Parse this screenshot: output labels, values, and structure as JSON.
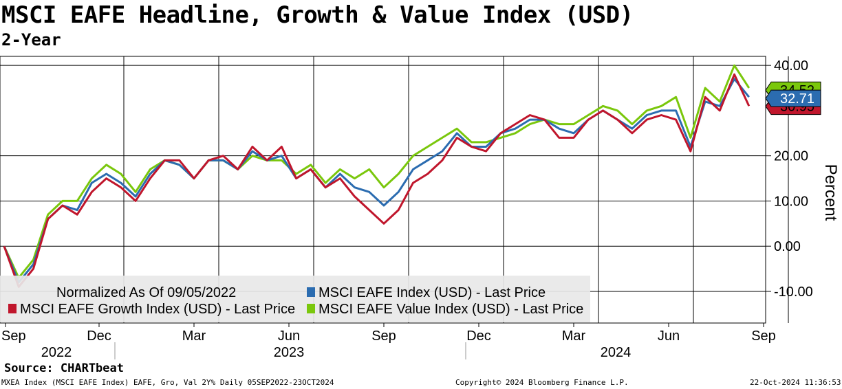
{
  "colors": {
    "index": "#2b6cb0",
    "growth": "#c0162c",
    "value": "#7ac70c"
  },
  "chart_data": {
    "type": "line",
    "title": "MSCI EAFE Headline, Growth & Value Index (USD)",
    "subtitle": "2-Year",
    "ylabel": "Percent",
    "ylim": [
      -17,
      42
    ],
    "y_ticks": [
      "40.00",
      "20.00",
      "10.00",
      "0.00",
      "-10.00"
    ],
    "y_tick_values": [
      40,
      20,
      10,
      0,
      -10
    ],
    "x_range": [
      0,
      103
    ],
    "x_month_ticks": [
      "Sep",
      "Dec",
      "Mar",
      "Jun",
      "Sep",
      "Dec",
      "Mar",
      "Jun",
      "Sep"
    ],
    "x_month_positions": [
      0,
      13,
      26,
      39,
      52,
      65,
      78,
      91,
      104
    ],
    "x_years": [
      "2022",
      "2023",
      "2024"
    ],
    "legend_note": "Normalized As Of 09/05/2022",
    "series": [
      {
        "name": "MSCI EAFE Index (USD) - Last Price",
        "key": "index",
        "last": "32.71",
        "x": [
          0,
          2,
          4,
          6,
          8,
          10,
          12,
          14,
          16,
          18,
          20,
          22,
          24,
          26,
          28,
          30,
          32,
          34,
          36,
          38,
          40,
          42,
          44,
          46,
          48,
          50,
          52,
          54,
          56,
          58,
          60,
          62,
          64,
          66,
          68,
          70,
          72,
          74,
          76,
          78,
          80,
          82,
          84,
          86,
          88,
          90,
          92,
          94,
          96,
          98,
          100,
          102
        ],
        "values": [
          0,
          -8,
          -4,
          6,
          9,
          8,
          14,
          16,
          14,
          11,
          16,
          19,
          18,
          15,
          19,
          19,
          17,
          21,
          19,
          20,
          15,
          17,
          13,
          16,
          13,
          12,
          9,
          12,
          17,
          19,
          21,
          25,
          22,
          22,
          25,
          26,
          28,
          28,
          26,
          25,
          28,
          30,
          28,
          26,
          29,
          30,
          30,
          22,
          32,
          31,
          37,
          33
        ]
      },
      {
        "name": "MSCI EAFE Growth Index (USD) - Last Price",
        "key": "growth",
        "last": "30.95",
        "x": [
          0,
          2,
          4,
          6,
          8,
          10,
          12,
          14,
          16,
          18,
          20,
          22,
          24,
          26,
          28,
          30,
          32,
          34,
          36,
          38,
          40,
          42,
          44,
          46,
          48,
          50,
          52,
          54,
          56,
          58,
          60,
          62,
          64,
          66,
          68,
          70,
          72,
          74,
          76,
          78,
          80,
          82,
          84,
          86,
          88,
          90,
          92,
          94,
          96,
          98,
          100,
          102
        ],
        "values": [
          0,
          -9,
          -5,
          6,
          9,
          7,
          12,
          15,
          13,
          10,
          15,
          19,
          19,
          15,
          19,
          20,
          17,
          22,
          19,
          22,
          15,
          17,
          13,
          15,
          11,
          8,
          5,
          8,
          14,
          16,
          19,
          24,
          22,
          21,
          25,
          27,
          29,
          28,
          24,
          24,
          28,
          30,
          28,
          25,
          28,
          29,
          28,
          21,
          33,
          30,
          38,
          31
        ]
      },
      {
        "name": "MSCI EAFE Value Index (USD) - Last Price",
        "key": "value",
        "last": "34.52",
        "x": [
          0,
          2,
          4,
          6,
          8,
          10,
          12,
          14,
          16,
          18,
          20,
          22,
          24,
          26,
          28,
          30,
          32,
          34,
          36,
          38,
          40,
          42,
          44,
          46,
          48,
          50,
          52,
          54,
          56,
          58,
          60,
          62,
          64,
          66,
          68,
          70,
          72,
          74,
          76,
          78,
          80,
          82,
          84,
          86,
          88,
          90,
          92,
          94,
          96,
          98,
          100,
          102
        ],
        "values": [
          0,
          -7,
          -3,
          7,
          10,
          10,
          15,
          18,
          16,
          12,
          17,
          19,
          18,
          15,
          19,
          19,
          17,
          20,
          19,
          19,
          16,
          18,
          14,
          17,
          15,
          17,
          13,
          16,
          20,
          22,
          24,
          26,
          23,
          23,
          24,
          25,
          27,
          28,
          27,
          27,
          29,
          31,
          30,
          27,
          30,
          31,
          33,
          24,
          35,
          32,
          40,
          35
        ]
      }
    ]
  },
  "footer": {
    "source": "Source: CHARTbeat",
    "left": "MXEA Index (MSCI EAFE Index) EAFE, Gro, Val 2Y% Daily 05SEP2022-23OCT2024",
    "center": "Copyright© 2024 Bloomberg Finance L.P.",
    "right": "22-Oct-2024 11:36:53"
  }
}
